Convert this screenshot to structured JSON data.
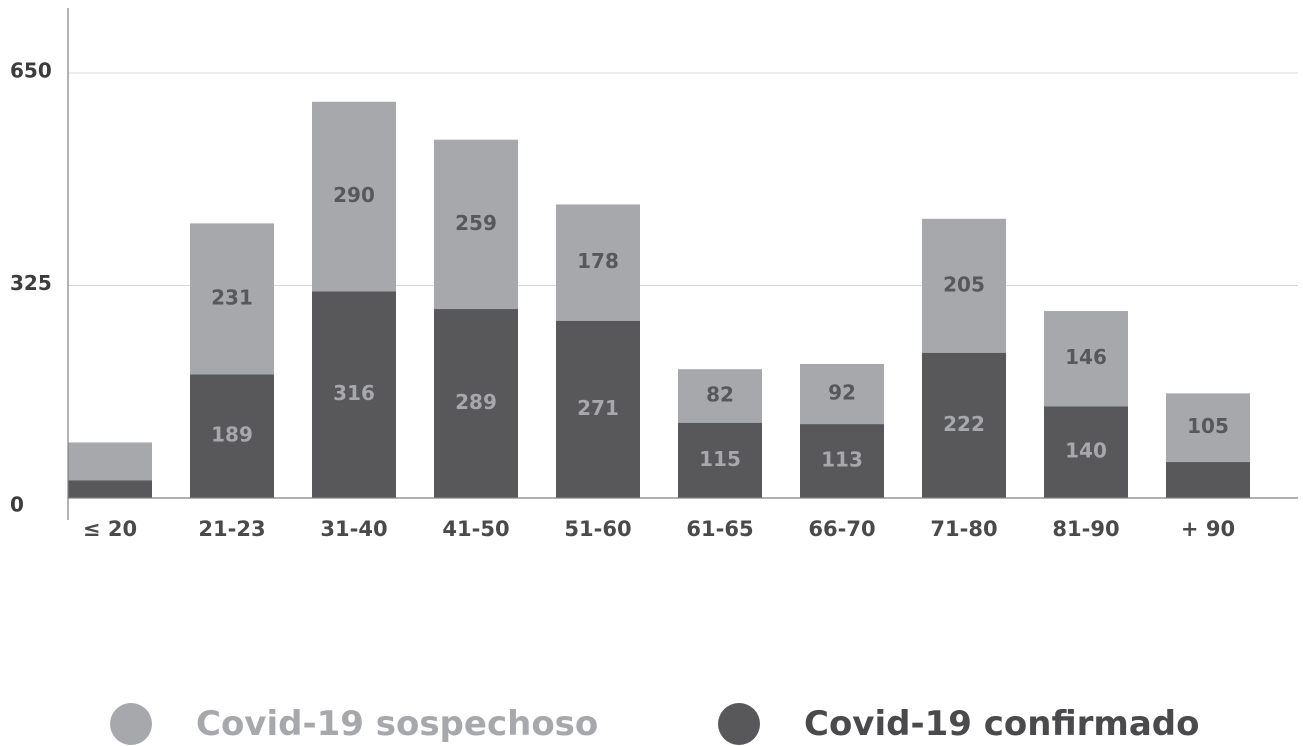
{
  "chart_data": {
    "type": "bar",
    "stacked": true,
    "categories": [
      "≤ 20",
      "21-23",
      "31-40",
      "41-50",
      "51-60",
      "61-65",
      "66-70",
      "71-80",
      "81-90",
      "+ 90"
    ],
    "series": [
      {
        "name": "Covid-19 confirmado",
        "color": "#58585b",
        "values": [
          27,
          189,
          316,
          289,
          271,
          115,
          113,
          222,
          140,
          55
        ],
        "labels": [
          "",
          "189",
          "316",
          "289",
          "271",
          "115",
          "113",
          "222",
          "140",
          ""
        ]
      },
      {
        "name": "Covid-19 sospechoso",
        "color": "#a7a8ab",
        "values": [
          58,
          231,
          290,
          259,
          178,
          82,
          92,
          205,
          146,
          105
        ],
        "labels": [
          "",
          "231",
          "290",
          "259",
          "178",
          "82",
          "92",
          "205",
          "146",
          "105"
        ]
      }
    ],
    "yticks": [
      "0",
      "325",
      "650"
    ],
    "ylim": [
      0,
      700
    ],
    "grid": true,
    "legend_position": "bottom"
  },
  "colors": {
    "confirmed": "#58585b",
    "suspected": "#a7a8ab",
    "confirmed_label": "#a7a8ab",
    "suspected_label": "#58585b",
    "axis": "#808080",
    "grid": "#d8d8d8",
    "tick_text": "#3c3c3c",
    "legend_suspected_text": "#a7a8ab",
    "legend_confirmed_text": "#4a4a4c"
  },
  "legend": {
    "suspected": "Covid-19  sospechoso",
    "confirmed": "Covid-19  confirmado"
  }
}
